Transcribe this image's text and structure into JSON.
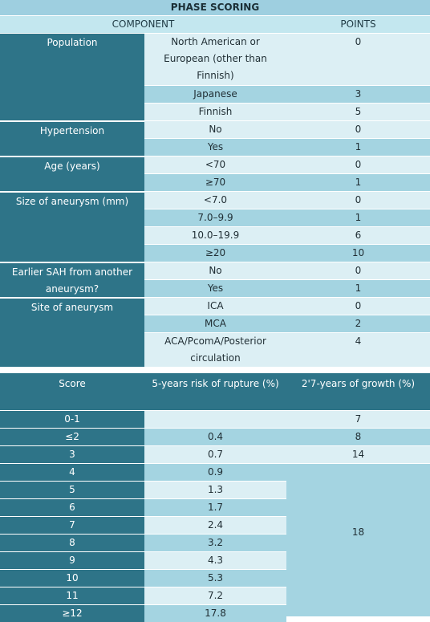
{
  "phases_table": {
    "title": "PHASE SCORING",
    "headers": {
      "component": "COMPONENT",
      "points": "POINTS"
    },
    "groups": [
      {
        "component": "Population",
        "rows": [
          {
            "option": "North American or European (other than Finnish)",
            "points": "0"
          },
          {
            "option": "Japanese",
            "points": "3"
          },
          {
            "option": "Finnish",
            "points": "5"
          }
        ]
      },
      {
        "component": "Hypertension",
        "rows": [
          {
            "option": "No",
            "points": "0"
          },
          {
            "option": "Yes",
            "points": "1"
          }
        ]
      },
      {
        "component": "Age (years)",
        "rows": [
          {
            "option": "<70",
            "points": "0"
          },
          {
            "option": "≥70",
            "points": "1"
          }
        ]
      },
      {
        "component": "Size of aneurysm (mm)",
        "rows": [
          {
            "option": "<7.0",
            "points": "0"
          },
          {
            "option": "7.0–9.9",
            "points": "1"
          },
          {
            "option": "10.0–19.9",
            "points": "6"
          },
          {
            "option": "≥20",
            "points": "10"
          }
        ]
      },
      {
        "component": "Earlier SAH from another aneurysm?",
        "rows": [
          {
            "option": "No",
            "points": "0"
          },
          {
            "option": "Yes",
            "points": "1"
          }
        ]
      },
      {
        "component": "Site of aneurysm",
        "rows": [
          {
            "option": "ICA",
            "points": "0"
          },
          {
            "option": "MCA",
            "points": "2"
          },
          {
            "option": "ACA/PcomA/Posterior circulation",
            "points": "4"
          }
        ]
      }
    ]
  },
  "risk_table": {
    "headers": {
      "score": "Score",
      "rupture": "5-years risk of rupture (%)",
      "growth": "2'7-years of growth (%)"
    },
    "rows": [
      {
        "score": "0-1",
        "rupture": "",
        "growth": "7"
      },
      {
        "score": "≤2",
        "rupture": "0.4",
        "growth": "8"
      },
      {
        "score": "3",
        "rupture": "0.7",
        "growth": "14"
      },
      {
        "score": "4",
        "rupture": "0.9"
      },
      {
        "score": "5",
        "rupture": "1.3"
      },
      {
        "score": "6",
        "rupture": "1.7"
      },
      {
        "score": "7",
        "rupture": "2.4"
      },
      {
        "score": "8",
        "rupture": "3.2"
      },
      {
        "score": "9",
        "rupture": "4.3"
      },
      {
        "score": "10",
        "rupture": "5.3"
      },
      {
        "score": "11",
        "rupture": "7.2"
      },
      {
        "score": "≥12",
        "rupture": "17.8"
      }
    ],
    "growth_merged": "18"
  }
}
